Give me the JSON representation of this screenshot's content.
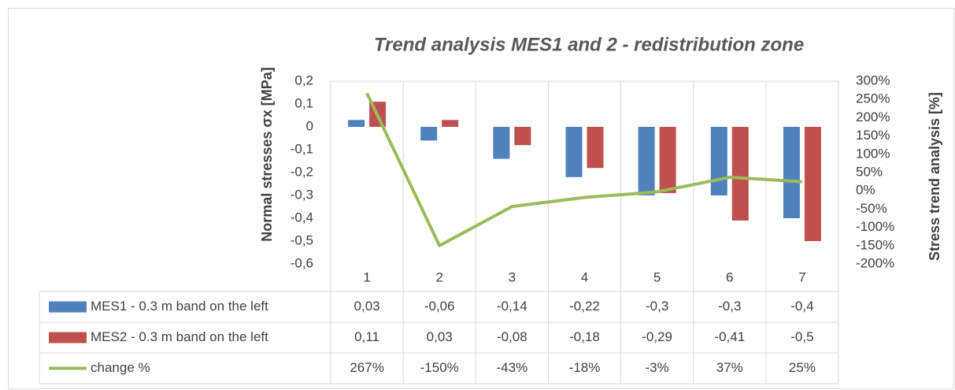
{
  "chart_data": {
    "type": "bar",
    "title": "Trend analysis MES1 and 2 - redistribution zone",
    "y_label": "Normal stresses σx [MPa]",
    "y2_label": "Stress trend analysis [%]",
    "categories": [
      "1",
      "2",
      "3",
      "4",
      "5",
      "6",
      "7"
    ],
    "series": [
      {
        "name": "MES1 - 0.3 m band on the left",
        "color": "#4f81bd",
        "values": [
          0.03,
          -0.06,
          -0.14,
          -0.22,
          -0.3,
          -0.3,
          -0.4
        ],
        "value_labels": [
          "0,03",
          "-0,06",
          "-0,14",
          "-0,22",
          "-0,3",
          "-0,3",
          "-0,4"
        ]
      },
      {
        "name": "MES2 - 0.3 m band on the left",
        "color": "#c0504d",
        "values": [
          0.11,
          0.03,
          -0.08,
          -0.18,
          -0.29,
          -0.41,
          -0.5
        ],
        "value_labels": [
          "0,11",
          "0,03",
          "-0,08",
          "-0,18",
          "-0,29",
          "-0,41",
          "-0,5"
        ]
      },
      {
        "name": "change %",
        "type": "line",
        "axis": "y2",
        "color": "#9bbb59",
        "values": [
          267,
          -150,
          -43,
          -18,
          -3,
          37,
          25
        ],
        "value_labels": [
          "267%",
          "-150%",
          "-43%",
          "-18%",
          "-3%",
          "37%",
          "25%"
        ]
      }
    ],
    "ylim": [
      -0.6,
      0.2
    ],
    "yticks": [
      {
        "value": -0.6,
        "label": "-0,6"
      },
      {
        "value": -0.5,
        "label": "-0,5"
      },
      {
        "value": -0.4,
        "label": "-0,4"
      },
      {
        "value": -0.3,
        "label": "-0,3"
      },
      {
        "value": -0.2,
        "label": "-0,2"
      },
      {
        "value": -0.1,
        "label": "-0,1"
      },
      0,
      {
        "value": 0.1,
        "label": "0,1"
      },
      {
        "value": 0.2,
        "label": "0,2"
      }
    ],
    "y2lim": [
      -200,
      300
    ],
    "y2ticks": [
      {
        "value": -200,
        "label": "-200%"
      },
      {
        "value": -150,
        "label": "-150%"
      },
      {
        "value": -100,
        "label": "-100%"
      },
      {
        "value": -50,
        "label": "-50%"
      },
      {
        "value": 0,
        "label": "0%"
      },
      {
        "value": 50,
        "label": "50%"
      },
      {
        "value": 100,
        "label": "100%"
      },
      {
        "value": 150,
        "label": "150%"
      },
      {
        "value": 200,
        "label": "200%"
      },
      {
        "value": 250,
        "label": "250%"
      },
      {
        "value": 300,
        "label": "300%"
      }
    ]
  }
}
